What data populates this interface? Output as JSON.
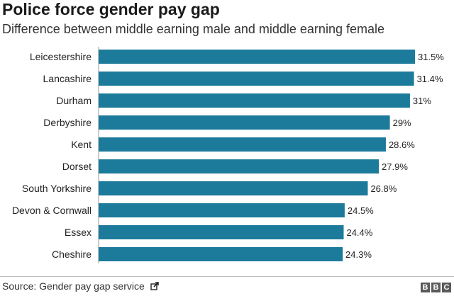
{
  "colors": {
    "bar": "#1c7a9a",
    "label": "#222222"
  },
  "source": {
    "text": "Source: Gender pay gap service",
    "icon": "external-link-icon"
  },
  "brand": {
    "letters": [
      "B",
      "B",
      "C"
    ]
  },
  "chart_data": {
    "type": "bar",
    "orientation": "horizontal",
    "title": "Police force gender pay gap",
    "subtitle": "Difference between middle earning male and middle earning female",
    "categories": [
      "Leicestershire",
      "Lancashire",
      "Durham",
      "Derbyshire",
      "Kent",
      "Dorset",
      "South Yorkshire",
      "Devon & Cornwall",
      "Essex",
      "Cheshire"
    ],
    "values": [
      31.5,
      31.4,
      31,
      29,
      28.6,
      27.9,
      26.8,
      24.5,
      24.4,
      24.3
    ],
    "data_labels": [
      "31.5%",
      "31.4%",
      "31%",
      "29%",
      "28.6%",
      "27.9%",
      "26.8%",
      "24.5%",
      "24.4%",
      "24.3%"
    ],
    "xlim": [
      0,
      31.5
    ],
    "grid": false,
    "legend": "none"
  }
}
